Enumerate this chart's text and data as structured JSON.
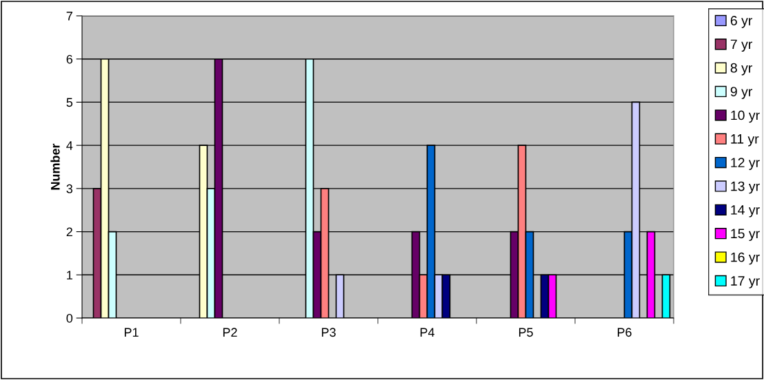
{
  "chart_data": {
    "type": "bar",
    "ylabel": "Number",
    "categories": [
      "P1",
      "P2",
      "P3",
      "P4",
      "P5",
      "P6"
    ],
    "series": [
      {
        "name": "6 yr",
        "color": "#9999ff",
        "values": [
          null,
          null,
          null,
          null,
          null,
          null
        ]
      },
      {
        "name": "7 yr",
        "color": "#993366",
        "values": [
          3,
          null,
          null,
          null,
          null,
          null
        ]
      },
      {
        "name": "8 yr",
        "color": "#ffffcc",
        "values": [
          6,
          4,
          null,
          null,
          null,
          null
        ]
      },
      {
        "name": "9 yr",
        "color": "#ccffff",
        "values": [
          2,
          3,
          6,
          null,
          null,
          null
        ]
      },
      {
        "name": "10 yr",
        "color": "#660066",
        "values": [
          null,
          6,
          2,
          2,
          2,
          null
        ]
      },
      {
        "name": "11 yr",
        "color": "#ff8080",
        "values": [
          null,
          null,
          3,
          1,
          4,
          null
        ]
      },
      {
        "name": "12 yr",
        "color": "#0066cc",
        "values": [
          null,
          null,
          null,
          4,
          2,
          2
        ]
      },
      {
        "name": "13 yr",
        "color": "#ccccff",
        "values": [
          null,
          null,
          1,
          1,
          null,
          5
        ]
      },
      {
        "name": "14 yr",
        "color": "#000080",
        "values": [
          null,
          null,
          null,
          1,
          1,
          null
        ]
      },
      {
        "name": "15 yr",
        "color": "#ff00ff",
        "values": [
          null,
          null,
          null,
          null,
          1,
          2
        ]
      },
      {
        "name": "16 yr",
        "color": "#ffff00",
        "values": [
          null,
          null,
          null,
          null,
          null,
          null
        ]
      },
      {
        "name": "17 yr",
        "color": "#00ffff",
        "values": [
          null,
          null,
          null,
          null,
          null,
          1
        ]
      }
    ],
    "ylim": [
      0,
      7
    ],
    "yticks": [
      0,
      1,
      2,
      3,
      4,
      5,
      6,
      7
    ],
    "grid": "y",
    "legend": "right"
  }
}
